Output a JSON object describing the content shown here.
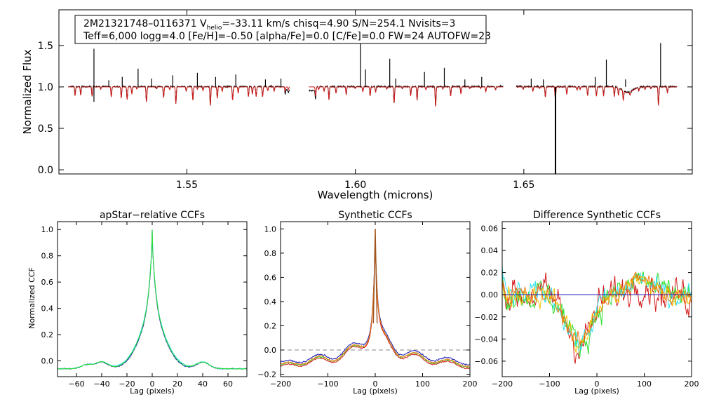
{
  "colors": {
    "black": "#000000",
    "red": "#d41c1c",
    "blue": "#1515b5",
    "green": "#2ee02e",
    "cyan": "#30e0f0",
    "yellow": "#f2c200",
    "orange": "#f07a10",
    "brown": "#a0521b",
    "gray": "#888888"
  },
  "chart_data": [
    {
      "type": "line",
      "title": "",
      "xlabel": "Wavelength (microns)",
      "ylabel": "Normalized Flux",
      "xlim": [
        1.512,
        1.7
      ],
      "ylim": [
        -0.05,
        1.93
      ],
      "xticks": [
        1.55,
        1.6,
        1.65
      ],
      "xtick_labels": [
        "1.55",
        "1.60",
        "1.65"
      ],
      "yticks": [
        0.0,
        0.5,
        1.0,
        1.5
      ],
      "ytick_labels": [
        "0.0",
        "0.5",
        "1.0",
        "1.5"
      ],
      "annotation_line1": "2M21321748–0116371  V",
      "annotation_sub": "helio",
      "annotation_line1b": "=–33.11 km/s  chisq=4.90  S/N=254.1  Nvisits=3",
      "annotation_line2": "Teff=6,000 logg=4.0 [Fe/H]=–0.50 [alpha/Fe]=0.0 [C/Fe]=0.0 FW=24 AUTOFW=23",
      "chips": [
        [
          1.5148,
          1.5805
        ],
        [
          1.5862,
          1.6438
        ],
        [
          1.6478,
          1.6955
        ]
      ],
      "series": [
        {
          "name": "observed",
          "color": "black"
        },
        {
          "name": "model",
          "color": "red"
        }
      ],
      "emission_spikes": [
        {
          "x": 1.5224,
          "y": 1.46
        },
        {
          "x": 1.5224,
          "y": 0.82
        },
        {
          "x": 1.5268,
          "y": 1.08
        },
        {
          "x": 1.5308,
          "y": 1.12
        },
        {
          "x": 1.5355,
          "y": 1.22
        },
        {
          "x": 1.5395,
          "y": 1.1
        },
        {
          "x": 1.5458,
          "y": 1.14
        },
        {
          "x": 1.5531,
          "y": 1.17
        },
        {
          "x": 1.5585,
          "y": 1.12
        },
        {
          "x": 1.5645,
          "y": 1.15
        },
        {
          "x": 1.5733,
          "y": 1.09
        },
        {
          "x": 1.5779,
          "y": 1.1
        },
        {
          "x": 1.6015,
          "y": 1.54
        },
        {
          "x": 1.603,
          "y": 1.21
        },
        {
          "x": 1.6102,
          "y": 1.34
        },
        {
          "x": 1.612,
          "y": 1.1
        },
        {
          "x": 1.6205,
          "y": 1.18
        },
        {
          "x": 1.6264,
          "y": 1.23
        },
        {
          "x": 1.6325,
          "y": 1.09
        },
        {
          "x": 1.6375,
          "y": 1.12
        },
        {
          "x": 1.6522,
          "y": 1.1
        },
        {
          "x": 1.6558,
          "y": 1.09
        },
        {
          "x": 1.6712,
          "y": 1.12
        },
        {
          "x": 1.6745,
          "y": 1.33
        },
        {
          "x": 1.6802,
          "y": 1.09
        },
        {
          "x": 1.6906,
          "y": 1.53
        }
      ],
      "absorption_drop": {
        "x": 1.6594,
        "y": -0.05
      }
    },
    {
      "type": "line",
      "title": "apStar−relative CCFs",
      "xlabel": "Lag (pixels)",
      "ylabel": "Normalized CCF",
      "xlim": [
        -75,
        75
      ],
      "ylim": [
        -0.12,
        1.06
      ],
      "xticks": [
        -60,
        -40,
        -20,
        0,
        20,
        40,
        60
      ],
      "xtick_labels": [
        "−60",
        "−40",
        "−20",
        "0",
        "20",
        "40",
        "60"
      ],
      "yticks": [
        0.0,
        0.2,
        0.4,
        0.6,
        0.8,
        1.0
      ],
      "ytick_labels": [
        "0.0",
        "0.2",
        "0.4",
        "0.6",
        "0.8",
        "1.0"
      ],
      "peak": {
        "x": 0,
        "y": 1.0
      },
      "series": [
        {
          "name": "visit-blue",
          "color": "blue"
        },
        {
          "name": "visit-cyan",
          "color": "cyan"
        },
        {
          "name": "visit-green",
          "color": "green"
        }
      ]
    },
    {
      "type": "line",
      "title": "Synthetic CCFs",
      "xlabel": "Lag (pixels)",
      "ylabel": "",
      "xlim": [
        -200,
        200
      ],
      "ylim": [
        -0.22,
        1.06
      ],
      "xticks": [
        -200,
        -100,
        0,
        100,
        200
      ],
      "xtick_labels": [
        "−200",
        "−100",
        "0",
        "100",
        "200"
      ],
      "yticks": [
        -0.2,
        0.0,
        0.2,
        0.4,
        0.6,
        0.8,
        1.0
      ],
      "ytick_labels": [
        "−0.2",
        "0.0",
        "0.2",
        "0.4",
        "0.6",
        "0.8",
        "1.0"
      ],
      "zero_line": 0.0,
      "peak": {
        "x": 0,
        "y": 1.0
      },
      "series": [
        {
          "name": "synth-blue",
          "color": "blue"
        },
        {
          "name": "synth-green",
          "color": "green"
        },
        {
          "name": "synth-red",
          "color": "red"
        },
        {
          "name": "synth-orange",
          "color": "orange"
        }
      ]
    },
    {
      "type": "line",
      "title": "Difference Synthetic CCFs",
      "xlabel": "Lag (pixels)",
      "ylabel": "",
      "xlim": [
        -200,
        200
      ],
      "ylim": [
        -0.074,
        0.066
      ],
      "xticks": [
        -200,
        -100,
        0,
        100,
        200
      ],
      "xtick_labels": [
        "−200",
        "−100",
        "0",
        "100",
        "200"
      ],
      "yticks": [
        -0.06,
        -0.04,
        -0.02,
        0.0,
        0.02,
        0.04,
        0.06
      ],
      "ytick_labels": [
        "−0.06",
        "−0.04",
        "−0.02",
        "0.00",
        "0.02",
        "0.04",
        "0.06"
      ],
      "zero_line": 0.0,
      "series": [
        {
          "name": "diff-red",
          "color": "red"
        },
        {
          "name": "diff-green",
          "color": "green"
        },
        {
          "name": "diff-cyan",
          "color": "cyan"
        },
        {
          "name": "diff-yellow",
          "color": "yellow"
        },
        {
          "name": "diff-orange",
          "color": "orange"
        },
        {
          "name": "diff-zero",
          "color": "blue"
        }
      ]
    }
  ]
}
